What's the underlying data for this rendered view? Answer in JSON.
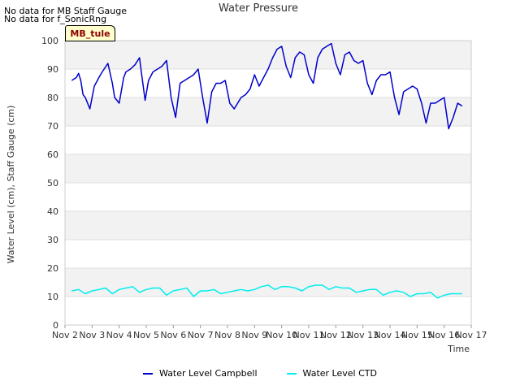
{
  "notices": [
    "No data for MB Staff Gauge",
    "No data for f_SonicRng"
  ],
  "station_tag": "MB_tule",
  "colors": {
    "background": "#ffffff",
    "band": "#f2f2f2",
    "grid": "#dddddd",
    "campbell": "#0000cc",
    "ctd": "#00eeee"
  },
  "chart_data": {
    "type": "line",
    "title": "Water Pressure",
    "xlabel": "Time",
    "ylabel": "Water Level (cm), Staff Gauge (cm)",
    "xlim": [
      "Nov 2",
      "Nov 17"
    ],
    "ylim": [
      0,
      100
    ],
    "x_ticks": [
      "Nov 2",
      "Nov 3",
      "Nov 4",
      "Nov 5",
      "Nov 6",
      "Nov 7",
      "Nov 8",
      "Nov 9",
      "Nov 10",
      "Nov 11",
      "Nov 12",
      "Nov 13",
      "Nov 14",
      "Nov 15",
      "Nov 16",
      "Nov 17"
    ],
    "y_ticks": [
      0,
      10,
      20,
      30,
      40,
      50,
      60,
      70,
      80,
      90,
      100
    ],
    "grid": true,
    "legend_position": "bottom-center",
    "series": [
      {
        "name": "Water Level Campbell",
        "x": [
          "Nov 2 06:00",
          "Nov 2 10:00",
          "Nov 2 12:00",
          "Nov 2 14:00",
          "Nov 2 16:00",
          "Nov 2 18:00",
          "Nov 2 22:00",
          "Nov 3 02:00",
          "Nov 3 06:00",
          "Nov 3 09:00",
          "Nov 3 14:00",
          "Nov 3 18:00",
          "Nov 3 20:00",
          "Nov 4 00:00",
          "Nov 4 04:00",
          "Nov 4 06:00",
          "Nov 4 10:00",
          "Nov 4 14:00",
          "Nov 4 18:00",
          "Nov 4 20:00",
          "Nov 4 23:00",
          "Nov 5 02:00",
          "Nov 5 06:00",
          "Nov 5 10:00",
          "Nov 5 14:00",
          "Nov 5 18:00",
          "Nov 5 22:00",
          "Nov 6 02:00",
          "Nov 6 06:00",
          "Nov 6 10:00",
          "Nov 6 14:00",
          "Nov 6 18:00",
          "Nov 6 22:00",
          "Nov 7 02:00",
          "Nov 7 06:00",
          "Nov 7 10:00",
          "Nov 7 14:00",
          "Nov 7 18:00",
          "Nov 7 22:00",
          "Nov 8 02:00",
          "Nov 8 06:00",
          "Nov 8 12:00",
          "Nov 8 16:00",
          "Nov 8 20:00",
          "Nov 9 00:00",
          "Nov 9 04:00",
          "Nov 9 08:00",
          "Nov 9 12:00",
          "Nov 9 16:00",
          "Nov 9 20:00",
          "Nov 10 00:00",
          "Nov 10 04:00",
          "Nov 10 08:00",
          "Nov 10 12:00",
          "Nov 10 16:00",
          "Nov 10 20:00",
          "Nov 11 00:00",
          "Nov 11 04:00",
          "Nov 11 08:00",
          "Nov 11 12:00",
          "Nov 11 16:00",
          "Nov 11 20:00",
          "Nov 12 00:00",
          "Nov 12 04:00",
          "Nov 12 08:00",
          "Nov 12 12:00",
          "Nov 12 16:00",
          "Nov 12 20:00",
          "Nov 13 00:00",
          "Nov 13 04:00",
          "Nov 13 08:00",
          "Nov 13 12:00",
          "Nov 13 16:00",
          "Nov 13 20:00",
          "Nov 14 00:00",
          "Nov 14 04:00",
          "Nov 14 08:00",
          "Nov 14 12:00",
          "Nov 14 16:00",
          "Nov 14 20:00",
          "Nov 15 00:00",
          "Nov 15 04:00",
          "Nov 15 08:00",
          "Nov 15 12:00",
          "Nov 15 16:00",
          "Nov 15 20:00",
          "Nov 16 00:00",
          "Nov 16 04:00",
          "Nov 16 08:00",
          "Nov 16 12:00",
          "Nov 16 16:00"
        ],
        "y": [
          86,
          87,
          88.5,
          86,
          81,
          80,
          76,
          84,
          87,
          89,
          92,
          85,
          80,
          78,
          87,
          89,
          90,
          91.5,
          94,
          88,
          79,
          86,
          89,
          90,
          91,
          93,
          80,
          73,
          85,
          86,
          87,
          88,
          90,
          80,
          71,
          82,
          85,
          85,
          86,
          78,
          76,
          80,
          81,
          83,
          88,
          84,
          87,
          90,
          94,
          97,
          98,
          91,
          87,
          94,
          96,
          95,
          88,
          85,
          94,
          97,
          98,
          99,
          92,
          88,
          95,
          96,
          93,
          92,
          93,
          85,
          81,
          86,
          88,
          88,
          89,
          80,
          74,
          82,
          83,
          84,
          83,
          78,
          71,
          78,
          78,
          79,
          80,
          69,
          73,
          78,
          77
        ]
      },
      {
        "name": "Water Level CTD",
        "x": [
          "Nov 2 06:00",
          "Nov 2 12:00",
          "Nov 2 18:00",
          "Nov 3 00:00",
          "Nov 3 06:00",
          "Nov 3 12:00",
          "Nov 3 18:00",
          "Nov 4 00:00",
          "Nov 4 06:00",
          "Nov 4 12:00",
          "Nov 4 18:00",
          "Nov 5 00:00",
          "Nov 5 06:00",
          "Nov 5 12:00",
          "Nov 5 18:00",
          "Nov 6 00:00",
          "Nov 6 06:00",
          "Nov 6 12:00",
          "Nov 6 18:00",
          "Nov 7 00:00",
          "Nov 7 06:00",
          "Nov 7 12:00",
          "Nov 7 18:00",
          "Nov 8 00:00",
          "Nov 8 06:00",
          "Nov 8 12:00",
          "Nov 8 18:00",
          "Nov 9 00:00",
          "Nov 9 06:00",
          "Nov 9 12:00",
          "Nov 9 18:00",
          "Nov 10 00:00",
          "Nov 10 06:00",
          "Nov 10 12:00",
          "Nov 10 18:00",
          "Nov 11 00:00",
          "Nov 11 06:00",
          "Nov 11 12:00",
          "Nov 11 18:00",
          "Nov 12 00:00",
          "Nov 12 06:00",
          "Nov 12 12:00",
          "Nov 12 18:00",
          "Nov 13 00:00",
          "Nov 13 06:00",
          "Nov 13 12:00",
          "Nov 13 18:00",
          "Nov 14 00:00",
          "Nov 14 06:00",
          "Nov 14 12:00",
          "Nov 14 18:00",
          "Nov 15 00:00",
          "Nov 15 06:00",
          "Nov 15 12:00",
          "Nov 15 18:00",
          "Nov 16 00:00",
          "Nov 16 06:00",
          "Nov 16 12:00",
          "Nov 16 16:00"
        ],
        "y": [
          12,
          12.5,
          11,
          12,
          12.5,
          13,
          11,
          12.5,
          13,
          13.5,
          11.5,
          12.5,
          13,
          13,
          10.5,
          12,
          12.5,
          13,
          10,
          12,
          12,
          12.5,
          11,
          11.5,
          12,
          12.5,
          12,
          12.5,
          13.5,
          14,
          12.5,
          13.5,
          13.5,
          13,
          12,
          13.5,
          14,
          14,
          12.5,
          13.5,
          13,
          13,
          11.5,
          12,
          12.5,
          12.5,
          10.5,
          11.5,
          12,
          11.5,
          10,
          11,
          11,
          11.5,
          9.5,
          10.5,
          11,
          11,
          11
        ]
      }
    ]
  }
}
